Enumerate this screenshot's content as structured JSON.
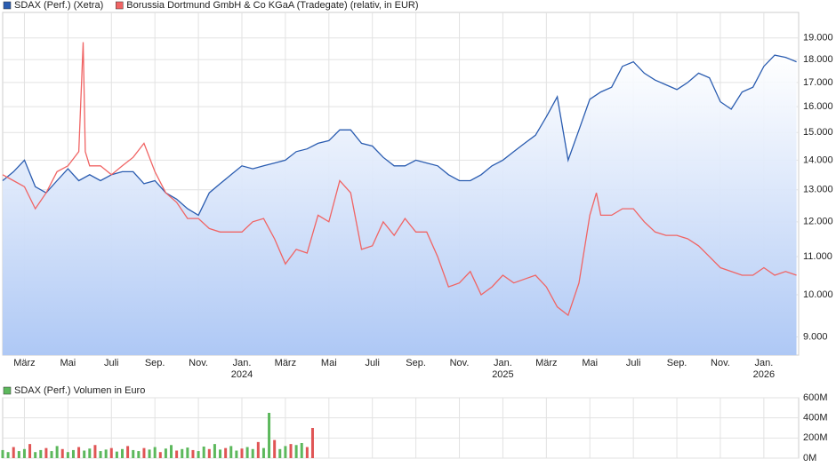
{
  "chart_data": [
    {
      "type": "line",
      "log_scale": true,
      "grid": true,
      "legend": "top-left",
      "xlim": [
        1.0,
        37.6
      ],
      "ylim": [
        8600,
        20250
      ],
      "xticks": [
        {
          "value": 2,
          "label": "März"
        },
        {
          "value": 4,
          "label": "Mai"
        },
        {
          "value": 6,
          "label": "Juli"
        },
        {
          "value": 8,
          "label": "Sep."
        },
        {
          "value": 10,
          "label": "Nov."
        },
        {
          "value": 12,
          "label": "Jan."
        },
        {
          "value": 14,
          "label": "März"
        },
        {
          "value": 16,
          "label": "Mai"
        },
        {
          "value": 18,
          "label": "Juli"
        },
        {
          "value": 20,
          "label": "Sep."
        },
        {
          "value": 22,
          "label": "Nov."
        },
        {
          "value": 24,
          "label": "Jan."
        },
        {
          "value": 26,
          "label": "März"
        },
        {
          "value": 28,
          "label": "Mai"
        },
        {
          "value": 30,
          "label": "Juli"
        },
        {
          "value": 32,
          "label": "Sep."
        },
        {
          "value": 34,
          "label": "Nov."
        },
        {
          "value": 36,
          "label": "Jan."
        }
      ],
      "x_year_labels": [
        {
          "value": 12,
          "label": "2024"
        },
        {
          "value": 24,
          "label": "2025"
        },
        {
          "value": 36,
          "label": "2026"
        }
      ],
      "yticks": [
        {
          "value": 9000,
          "label": "9.000"
        },
        {
          "value": 10000,
          "label": "10.000"
        },
        {
          "value": 11000,
          "label": "11.000"
        },
        {
          "value": 12000,
          "label": "12.000"
        },
        {
          "value": 13000,
          "label": "13.000"
        },
        {
          "value": 14000,
          "label": "14.000"
        },
        {
          "value": 15000,
          "label": "15.000"
        },
        {
          "value": 16000,
          "label": "16.000"
        },
        {
          "value": 17000,
          "label": "17.000"
        },
        {
          "value": 18000,
          "label": "18.000"
        },
        {
          "value": 19000,
          "label": "19.000"
        }
      ],
      "series": [
        {
          "name": "SDAX (Perf.) (Xetra)",
          "color": "#2a5cb0",
          "area": true,
          "x": [
            1,
            1.5,
            2,
            2.5,
            3,
            3.5,
            4,
            4.5,
            5,
            5.5,
            6,
            6.5,
            7,
            7.5,
            8,
            8.5,
            9,
            9.5,
            10,
            10.5,
            11,
            11.5,
            12,
            12.5,
            13,
            13.5,
            14,
            14.5,
            15,
            15.5,
            16,
            16.5,
            17,
            17.5,
            18,
            18.5,
            19,
            19.5,
            20,
            20.5,
            21,
            21.5,
            22,
            22.5,
            23,
            23.5,
            24,
            24.5,
            25,
            25.5,
            26,
            26.5,
            27,
            27.5,
            28,
            28.5,
            29,
            29.5,
            30,
            30.5,
            31,
            31.5,
            32,
            32.5,
            33,
            33.5,
            34,
            34.5,
            35,
            35.5,
            36,
            36.5,
            37,
            37.5
          ],
          "values": [
            13300,
            13600,
            14000,
            13100,
            12900,
            13300,
            13700,
            13300,
            13500,
            13300,
            13500,
            13600,
            13600,
            13200,
            13300,
            12900,
            12700,
            12400,
            12200,
            12900,
            13200,
            13500,
            13800,
            13700,
            13800,
            13900,
            14000,
            14300,
            14400,
            14600,
            14700,
            15100,
            15100,
            14600,
            14500,
            14100,
            13800,
            13800,
            14000,
            13900,
            13800,
            13500,
            13300,
            13300,
            13500,
            13800,
            14000,
            14300,
            14600,
            14900,
            15600,
            16400,
            14000,
            15100,
            16300,
            16600,
            16800,
            17700,
            17900,
            17400,
            17100,
            16900,
            16700,
            17000,
            17400,
            17200,
            16200,
            15900,
            16600,
            16800,
            17700,
            18200,
            18100,
            17900
          ]
        },
        {
          "name": "Borussia Dortmund GmbH & Co KGaA (Tradegate) (relativ, in EUR)",
          "color": "#f06464",
          "area": false,
          "x": [
            1,
            1.5,
            2,
            2.5,
            3,
            3.5,
            4,
            4.5,
            4.7,
            4.8,
            5,
            5.5,
            6,
            6.5,
            7,
            7.5,
            8,
            8.5,
            9,
            9.5,
            10,
            10.5,
            11,
            11.5,
            12,
            12.5,
            13,
            13.5,
            14,
            14.5,
            15,
            15.5,
            16,
            16.5,
            17,
            17.5,
            18,
            18.5,
            19,
            19.5,
            20,
            20.5,
            21,
            21.5,
            22,
            22.5,
            23,
            23.5,
            24,
            24.5,
            25,
            25.5,
            26,
            26.5,
            27,
            27.5,
            28,
            28.3,
            28.5,
            29,
            29.5,
            30,
            30.5,
            31,
            31.5,
            32,
            32.5,
            33,
            33.5,
            34,
            34.5,
            35,
            35.5,
            36,
            36.5,
            37,
            37.5
          ],
          "values": [
            13500,
            13300,
            13100,
            12400,
            12900,
            13600,
            13800,
            14300,
            18800,
            14300,
            13800,
            13800,
            13500,
            13800,
            14100,
            14600,
            13600,
            12900,
            12600,
            12100,
            12100,
            11800,
            11700,
            11700,
            11700,
            12000,
            12100,
            11500,
            10800,
            11200,
            11100,
            12200,
            12000,
            13300,
            12900,
            11200,
            11300,
            12000,
            11600,
            12100,
            11700,
            11700,
            11000,
            10200,
            10300,
            10600,
            10000,
            10200,
            10500,
            10300,
            10400,
            10500,
            10200,
            9700,
            9500,
            10300,
            12200,
            12900,
            12200,
            12200,
            12400,
            12400,
            12000,
            11700,
            11600,
            11600,
            11500,
            11300,
            11000,
            10700,
            10600,
            10500,
            10500,
            10700,
            10500,
            10600,
            10500
          ]
        }
      ]
    },
    {
      "type": "bar",
      "grid": true,
      "legend": "top-left",
      "xlim": [
        1.0,
        37.6
      ],
      "ylim": [
        0,
        600
      ],
      "xticks": [
        2,
        4,
        6,
        8,
        10,
        12,
        14,
        16,
        18,
        20,
        22,
        24,
        26,
        28,
        30,
        32,
        34,
        36
      ],
      "yticks": [
        {
          "value": 0,
          "label": "0M"
        },
        {
          "value": 200,
          "label": "200M"
        },
        {
          "value": 400,
          "label": "400M"
        },
        {
          "value": 600,
          "label": "600M"
        }
      ],
      "series": [
        {
          "name": "SDAX (Perf.) Volumen in Euro",
          "color": "#5cb85c",
          "x": [
            1,
            1.25,
            1.5,
            1.75,
            2,
            2.25,
            2.5,
            2.75,
            3,
            3.25,
            3.5,
            3.75,
            4,
            4.25,
            4.5,
            4.75,
            5,
            5.25,
            5.5,
            5.75,
            6,
            6.25,
            6.5,
            6.75,
            7,
            7.25,
            7.5,
            7.75,
            8,
            8.25,
            8.5,
            8.75,
            9,
            9.25,
            9.5,
            9.75,
            10,
            10.25,
            10.5,
            10.75,
            11,
            11.25,
            11.5,
            11.75,
            12,
            12.25,
            12.5,
            12.75,
            13,
            13.25,
            13.5,
            13.75,
            14,
            14.25,
            14.5,
            14.75,
            15,
            15.25
          ],
          "values": [
            80,
            60,
            110,
            70,
            90,
            140,
            60,
            80,
            100,
            70,
            120,
            90,
            60,
            80,
            110,
            75,
            95,
            130,
            70,
            85,
            100,
            65,
            90,
            120,
            80,
            70,
            100,
            85,
            110,
            60,
            95,
            130,
            75,
            90,
            105,
            80,
            70,
            115,
            90,
            140,
            85,
            100,
            120,
            75,
            95,
            110,
            90,
            160,
            100,
            450,
            180,
            90,
            120,
            140,
            130,
            150,
            110,
            300
          ],
          "colors": [
            "#5cb85c",
            "#5cb85c",
            "#e05555",
            "#5cb85c",
            "#5cb85c",
            "#e05555",
            "#5cb85c",
            "#5cb85c",
            "#e05555",
            "#5cb85c",
            "#5cb85c",
            "#e05555",
            "#5cb85c",
            "#5cb85c",
            "#e05555",
            "#5cb85c",
            "#5cb85c",
            "#e05555",
            "#5cb85c",
            "#5cb85c",
            "#e05555",
            "#5cb85c",
            "#5cb85c",
            "#e05555",
            "#5cb85c",
            "#5cb85c",
            "#e05555",
            "#5cb85c",
            "#5cb85c",
            "#e05555",
            "#5cb85c",
            "#5cb85c",
            "#e05555",
            "#5cb85c",
            "#5cb85c",
            "#e05555",
            "#5cb85c",
            "#5cb85c",
            "#e05555",
            "#5cb85c",
            "#5cb85c",
            "#e05555",
            "#5cb85c",
            "#5cb85c",
            "#e05555",
            "#5cb85c",
            "#5cb85c",
            "#e05555",
            "#5cb85c",
            "#5cb85c",
            "#e05555",
            "#5cb85c",
            "#5cb85c",
            "#e05555",
            "#5cb85c",
            "#5cb85c",
            "#e05555",
            "#e05555"
          ]
        }
      ]
    }
  ]
}
